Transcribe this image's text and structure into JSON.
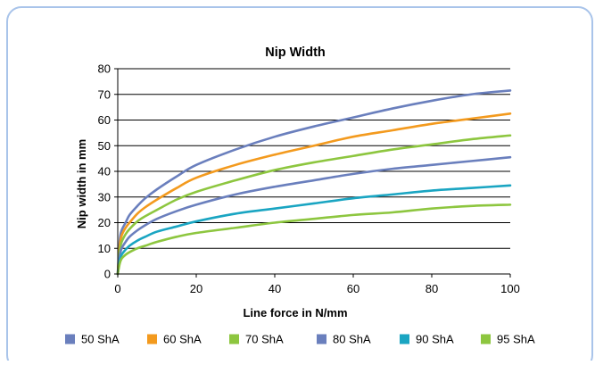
{
  "chart_data": {
    "type": "line",
    "title": "Nip Width",
    "xlabel": "Line force in N/mm",
    "ylabel": "Nip width in mm",
    "xlim": [
      0,
      100
    ],
    "ylim": [
      0,
      80
    ],
    "xticks": [
      0,
      20,
      40,
      60,
      80,
      100
    ],
    "yticks": [
      0,
      10,
      20,
      30,
      40,
      50,
      60,
      70,
      80
    ],
    "grid": "horizontal",
    "legend_position": "bottom",
    "x": [
      0,
      0.5,
      1,
      2,
      3,
      5,
      7,
      10,
      15,
      20,
      30,
      40,
      50,
      60,
      70,
      80,
      90,
      100
    ],
    "series": [
      {
        "name": "50 ShA",
        "color": "#6a7fbd",
        "values": [
          0,
          13,
          17,
          20,
          23,
          26.5,
          29.5,
          33,
          38,
          42.5,
          48.5,
          53.5,
          57.5,
          61,
          64.5,
          67.5,
          70,
          71.5
        ]
      },
      {
        "name": "60 ShA",
        "color": "#f39a1e",
        "values": [
          0,
          11,
          15,
          18,
          20,
          23.5,
          26,
          29,
          33.5,
          37.5,
          42.5,
          46.5,
          50,
          53.5,
          56,
          58.5,
          60.5,
          62.5
        ]
      },
      {
        "name": "70 ShA",
        "color": "#8dc63f",
        "values": [
          0,
          9,
          12.5,
          15.5,
          17.5,
          20.5,
          22.5,
          25,
          29,
          32,
          36.5,
          40.5,
          43.5,
          46,
          48.5,
          50.5,
          52.5,
          54
        ]
      },
      {
        "name": "80 ShA",
        "color": "#6a7fbd",
        "values": [
          0,
          7,
          10,
          12.5,
          14.5,
          17,
          19,
          21.5,
          24.5,
          27,
          31,
          34,
          36.5,
          39,
          41,
          42.5,
          44,
          45.5
        ]
      },
      {
        "name": "90 ShA",
        "color": "#1aa5c2",
        "values": [
          0,
          5,
          7.5,
          9.5,
          11,
          13,
          14.5,
          16.5,
          18.5,
          20.5,
          23.5,
          25.5,
          27.5,
          29.5,
          31,
          32.5,
          33.5,
          34.5
        ]
      },
      {
        "name": "95 ShA",
        "color": "#8dc63f",
        "values": [
          0,
          4,
          6,
          7.5,
          8.5,
          10,
          11,
          12.5,
          14.5,
          16,
          18,
          20,
          21.5,
          23,
          24,
          25.5,
          26.5,
          27
        ]
      }
    ]
  }
}
